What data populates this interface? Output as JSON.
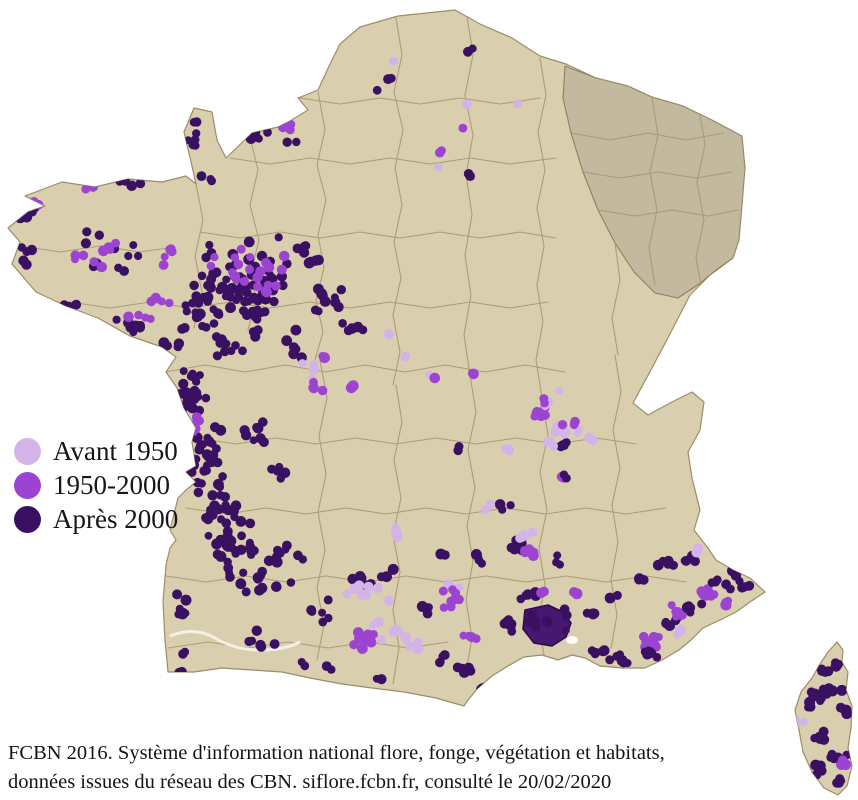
{
  "legend": {
    "items": [
      {
        "id": "avant1950",
        "label": "Avant 1950",
        "color": "#d4b4e8"
      },
      {
        "id": "p1950_2000",
        "label": "1950-2000",
        "color": "#9c44d1"
      },
      {
        "id": "apres2000",
        "label": "Après 2000",
        "color": "#3a1063"
      }
    ]
  },
  "caption": {
    "line1": "FCBN 2016. Système d'information national flore, fonge, végétation et habitats,",
    "line2": "données issues du réseau des CBN. siflore.fcbn.fr, consulté le 20/02/2020"
  },
  "map": {
    "colors": {
      "sea": "#ffffff",
      "land": "#d9cfae",
      "land_border": "#9c8c6a",
      "dept_border": "#a5946f",
      "region_border": "#8f7e5d",
      "ne_region": "#c3b99e",
      "river": "#f6f3ea",
      "patch_fill": "#48176f",
      "patch_border": "#2e0a50"
    },
    "dot_categories": {
      "a": {
        "label": "Avant 1950",
        "color": "#d4b4e8"
      },
      "b": {
        "label": "1950-2000",
        "color": "#9c44d1"
      },
      "c": {
        "label": "Après 2000",
        "color": "#3a1063"
      }
    },
    "clusters": [
      [
        "c",
        195,
        132,
        9,
        26,
        7
      ],
      [
        "c",
        258,
        136,
        26,
        7,
        5
      ],
      [
        "c",
        212,
        177,
        12,
        6,
        3
      ],
      [
        "c",
        122,
        181,
        33,
        7,
        5
      ],
      [
        "b",
        94,
        186,
        18,
        6,
        3
      ],
      [
        "c",
        30,
        212,
        13,
        10,
        5
      ],
      [
        "b",
        36,
        204,
        11,
        7,
        4
      ],
      [
        "c",
        28,
        254,
        11,
        17,
        5
      ],
      [
        "c",
        108,
        251,
        36,
        29,
        12
      ],
      [
        "b",
        100,
        257,
        29,
        24,
        9
      ],
      [
        "c",
        60,
        304,
        17,
        8,
        5
      ],
      [
        "c",
        128,
        327,
        26,
        10,
        8
      ],
      [
        "b",
        141,
        317,
        18,
        8,
        4
      ],
      [
        "c",
        172,
        347,
        13,
        8,
        5
      ],
      [
        "b",
        160,
        299,
        14,
        9,
        4
      ],
      [
        "b",
        285,
        129,
        11,
        7,
        3
      ],
      [
        "c",
        295,
        141,
        10,
        6,
        2
      ],
      [
        "c",
        240,
        288,
        58,
        54,
        85
      ],
      [
        "b",
        246,
        271,
        46,
        37,
        22
      ],
      [
        "c",
        200,
        304,
        27,
        27,
        14
      ],
      [
        "c",
        305,
        254,
        17,
        13,
        8
      ],
      [
        "c",
        330,
        299,
        17,
        15,
        8
      ],
      [
        "c",
        352,
        331,
        13,
        10,
        5
      ],
      [
        "b",
        168,
        257,
        13,
        10,
        5
      ],
      [
        "c",
        230,
        349,
        24,
        14,
        8
      ],
      [
        "c",
        290,
        349,
        19,
        12,
        5
      ],
      [
        "c",
        188,
        397,
        21,
        29,
        24
      ],
      [
        "c",
        205,
        457,
        21,
        37,
        30
      ],
      [
        "c",
        225,
        511,
        27,
        31,
        26
      ],
      [
        "b",
        196,
        421,
        10,
        14,
        5
      ],
      [
        "c",
        255,
        434,
        21,
        17,
        8
      ],
      [
        "a",
        300,
        371,
        17,
        10,
        4
      ],
      [
        "b",
        318,
        389,
        13,
        10,
        4
      ],
      [
        "c",
        280,
        469,
        14,
        12,
        5
      ],
      [
        "c",
        240,
        555,
        31,
        25,
        22
      ],
      [
        "c",
        285,
        554,
        19,
        17,
        9
      ],
      [
        "c",
        180,
        609,
        8,
        24,
        7
      ],
      [
        "c",
        182,
        664,
        8,
        19,
        5
      ],
      [
        "c",
        270,
        584,
        33,
        17,
        10
      ],
      [
        "c",
        320,
        611,
        21,
        14,
        6
      ],
      [
        "c",
        262,
        639,
        24,
        14,
        6
      ],
      [
        "c",
        360,
        579,
        17,
        10,
        5
      ],
      [
        "c",
        388,
        574,
        11,
        8,
        3
      ],
      [
        "a",
        372,
        591,
        30,
        11,
        9
      ],
      [
        "a",
        388,
        631,
        27,
        13,
        8
      ],
      [
        "b",
        363,
        644,
        19,
        13,
        8
      ],
      [
        "c",
        430,
        611,
        17,
        11,
        5
      ],
      [
        "b",
        452,
        601,
        13,
        10,
        5
      ],
      [
        "a",
        455,
        583,
        11,
        7,
        3
      ],
      [
        "b",
        470,
        640,
        13,
        10,
        4
      ],
      [
        "c",
        441,
        661,
        15,
        10,
        4
      ],
      [
        "a",
        418,
        644,
        11,
        8,
        3
      ],
      [
        "c",
        330,
        667,
        11,
        6,
        2
      ],
      [
        "c",
        375,
        681,
        11,
        6,
        2
      ],
      [
        "c",
        302,
        664,
        9,
        6,
        2
      ],
      [
        "c",
        505,
        624,
        14,
        11,
        7
      ],
      [
        "c",
        530,
        596,
        11,
        8,
        5
      ],
      [
        "c",
        548,
        625,
        24,
        17,
        8
      ],
      [
        "c",
        597,
        654,
        12,
        8,
        5
      ],
      [
        "c",
        620,
        659,
        12,
        9,
        6
      ],
      [
        "c",
        478,
        560,
        11,
        8,
        4
      ],
      [
        "a",
        530,
        533,
        8,
        6,
        2
      ],
      [
        "c",
        558,
        560,
        8,
        6,
        3
      ],
      [
        "b",
        575,
        593,
        7,
        6,
        2
      ],
      [
        "b",
        543,
        592,
        7,
        5,
        2
      ],
      [
        "c",
        590,
        612,
        8,
        6,
        3
      ],
      [
        "c",
        615,
        598,
        7,
        6,
        2
      ],
      [
        "c",
        468,
        667,
        11,
        9,
        5
      ],
      [
        "c",
        485,
        689,
        9,
        8,
        4
      ],
      [
        "b",
        452,
        589,
        11,
        8,
        4
      ],
      [
        "b",
        648,
        641,
        13,
        11,
        8
      ],
      [
        "c",
        650,
        653,
        12,
        8,
        5
      ],
      [
        "c",
        668,
        624,
        12,
        10,
        6
      ],
      [
        "b",
        673,
        611,
        10,
        8,
        5
      ],
      [
        "a",
        678,
        631,
        6,
        5,
        2
      ],
      [
        "c",
        694,
        606,
        12,
        9,
        6
      ],
      [
        "b",
        705,
        594,
        12,
        8,
        6
      ],
      [
        "c",
        719,
        583,
        12,
        9,
        6
      ],
      [
        "b",
        726,
        603,
        8,
        6,
        4
      ],
      [
        "c",
        745,
        587,
        10,
        7,
        5
      ],
      [
        "b",
        757,
        574,
        8,
        6,
        3
      ],
      [
        "c",
        735,
        575,
        8,
        6,
        3
      ],
      [
        "c",
        640,
        580,
        9,
        7,
        4
      ],
      [
        "c",
        660,
        565,
        8,
        6,
        3
      ],
      [
        "c",
        690,
        558,
        9,
        7,
        4
      ],
      [
        "a",
        700,
        551,
        6,
        5,
        2
      ],
      [
        "b",
        538,
        412,
        10,
        8,
        5
      ],
      [
        "a",
        546,
        404,
        8,
        6,
        3
      ],
      [
        "c",
        565,
        444,
        8,
        7,
        5
      ],
      [
        "a",
        551,
        443,
        8,
        6,
        4
      ],
      [
        "a",
        560,
        431,
        10,
        8,
        5
      ],
      [
        "a",
        578,
        432,
        6,
        5,
        2
      ],
      [
        "a",
        589,
        440,
        5,
        4,
        2
      ],
      [
        "b",
        568,
        424,
        8,
        6,
        3
      ],
      [
        "b",
        562,
        479,
        6,
        5,
        2
      ],
      [
        "c",
        565,
        476,
        6,
        5,
        2
      ],
      [
        "c",
        520,
        545,
        12,
        10,
        6
      ],
      [
        "b",
        528,
        552,
        10,
        8,
        5
      ],
      [
        "c",
        505,
        505,
        9,
        7,
        4
      ],
      [
        "a",
        486,
        508,
        7,
        5,
        2
      ],
      [
        "a",
        709,
        496,
        6,
        5,
        2
      ],
      [
        "c",
        668,
        560,
        9,
        7,
        3
      ],
      [
        "b",
        470,
        373,
        6,
        5,
        2
      ],
      [
        "a",
        525,
        537,
        6,
        5,
        2
      ],
      [
        "a",
        400,
        533,
        8,
        7,
        3
      ],
      [
        "c",
        440,
        554,
        9,
        6,
        3
      ],
      [
        "c",
        458,
        450,
        6,
        5,
        2
      ],
      [
        "a",
        507,
        448,
        7,
        6,
        3
      ],
      [
        "a",
        396,
        60,
        6,
        5,
        1
      ],
      [
        "c",
        393,
        79,
        6,
        5,
        2
      ],
      [
        "c",
        379,
        91,
        5,
        4,
        1
      ],
      [
        "c",
        467,
        52,
        8,
        5,
        2
      ],
      [
        "a",
        464,
        104,
        5,
        4,
        1
      ],
      [
        "a",
        515,
        103,
        5,
        4,
        1
      ],
      [
        "b",
        466,
        127,
        5,
        4,
        1
      ],
      [
        "b",
        445,
        152,
        6,
        5,
        2
      ],
      [
        "a",
        435,
        164,
        5,
        4,
        1
      ],
      [
        "c",
        470,
        174,
        6,
        5,
        2
      ],
      [
        "a",
        385,
        335,
        5,
        4,
        1
      ],
      [
        "a",
        405,
        358,
        5,
        4,
        1
      ],
      [
        "a",
        428,
        374,
        6,
        5,
        2
      ],
      [
        "b",
        433,
        380,
        5,
        4,
        1
      ],
      [
        "b",
        537,
        410,
        5,
        4,
        1
      ],
      [
        "a",
        560,
        390,
        5,
        4,
        1
      ],
      [
        "b",
        545,
        399,
        6,
        5,
        2
      ],
      [
        "c",
        318,
        310,
        6,
        5,
        2
      ],
      [
        "b",
        352,
        385,
        6,
        5,
        2
      ],
      [
        "b",
        322,
        356,
        6,
        5,
        2
      ],
      [
        "c",
        812,
        700,
        15,
        13,
        12
      ],
      [
        "c",
        832,
        692,
        10,
        8,
        5
      ],
      [
        "c",
        845,
        712,
        8,
        8,
        4
      ],
      [
        "c",
        820,
        735,
        11,
        8,
        5
      ],
      [
        "c",
        838,
        757,
        11,
        9,
        6
      ],
      [
        "c",
        818,
        771,
        9,
        7,
        4
      ],
      [
        "c",
        842,
        781,
        9,
        6,
        4
      ],
      [
        "a",
        801,
        723,
        6,
        6,
        3
      ],
      [
        "b",
        846,
        764,
        8,
        6,
        4
      ],
      [
        "c",
        838,
        662,
        6,
        8,
        3
      ],
      [
        "c",
        827,
        672,
        8,
        6,
        4
      ]
    ]
  }
}
